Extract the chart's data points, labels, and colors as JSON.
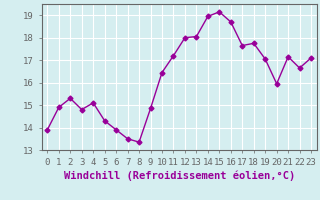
{
  "x": [
    0,
    1,
    2,
    3,
    4,
    5,
    6,
    7,
    8,
    9,
    10,
    11,
    12,
    13,
    14,
    15,
    16,
    17,
    18,
    19,
    20,
    21,
    22,
    23
  ],
  "y": [
    13.9,
    14.9,
    15.3,
    14.8,
    15.1,
    14.3,
    13.9,
    13.5,
    13.35,
    14.85,
    16.45,
    17.2,
    18.0,
    18.05,
    18.95,
    19.15,
    18.7,
    17.65,
    17.75,
    17.05,
    15.95,
    17.15,
    16.65,
    17.1
  ],
  "line_color": "#990099",
  "marker": "D",
  "marker_size": 2.5,
  "bg_color": "#d5eef0",
  "grid_color": "#ffffff",
  "xlabel": "Windchill (Refroidissement éolien,°C)",
  "xlim": [
    -0.5,
    23.5
  ],
  "ylim": [
    13,
    19.5
  ],
  "yticks": [
    13,
    14,
    15,
    16,
    17,
    18,
    19
  ],
  "xticks": [
    0,
    1,
    2,
    3,
    4,
    5,
    6,
    7,
    8,
    9,
    10,
    11,
    12,
    13,
    14,
    15,
    16,
    17,
    18,
    19,
    20,
    21,
    22,
    23
  ],
  "tick_label_fontsize": 6.5,
  "xlabel_fontsize": 7.5,
  "spine_color": "#666666",
  "font_family": "monospace"
}
